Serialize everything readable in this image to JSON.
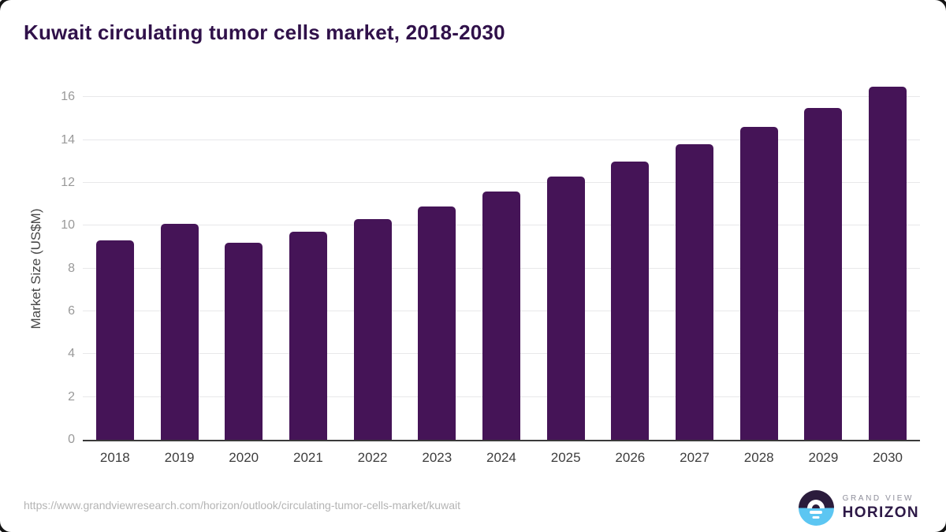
{
  "title": "Kuwait circulating tumor cells market, 2018-2030",
  "chart_data": {
    "type": "bar",
    "title": "Kuwait circulating tumor cells market, 2018-2030",
    "categories": [
      "2018",
      "2019",
      "2020",
      "2021",
      "2022",
      "2023",
      "2024",
      "2025",
      "2026",
      "2027",
      "2028",
      "2029",
      "2030"
    ],
    "values": [
      9.3,
      10.1,
      9.2,
      9.7,
      10.3,
      10.9,
      11.6,
      12.3,
      13.0,
      13.8,
      14.6,
      15.5,
      16.5
    ],
    "xlabel": "",
    "ylabel": "Market Size (US$M)",
    "ylim": [
      0,
      17
    ],
    "yticks": [
      0,
      2,
      4,
      6,
      8,
      10,
      12,
      14,
      16
    ],
    "grid": "horizontal",
    "legend": "none",
    "bar_color": "#451457"
  },
  "footer": {
    "source_url": "https://www.grandviewresearch.com/horizon/outlook/circulating-tumor-cells-market/kuwait",
    "logo_line1": "GRAND VIEW",
    "logo_line2": "HORIZON"
  },
  "colors": {
    "title_text": "#30114a",
    "bar": "#451457",
    "axis_line": "#3a3a3a",
    "gridline": "#e8e8ea",
    "y_tick_label": "#999999",
    "x_tick_label": "#3d3d3d",
    "url_text": "#b4b4b4",
    "logo_dark": "#2b1c3c",
    "logo_blue": "#5cc6f2",
    "logo_gray_text": "#8e8e9a",
    "logo_purple_text": "#2d1947"
  }
}
